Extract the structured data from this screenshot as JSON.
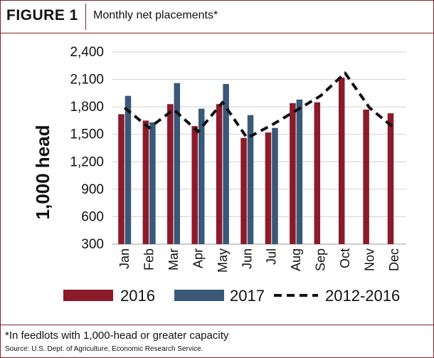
{
  "figure": {
    "label": "FIGURE 1",
    "title": "Monthly net placements*",
    "footnote": "*In feedlots with 1,000-head or greater capacity",
    "source": "Source: U.S. Dept. of Agriculture, Economic Research Service."
  },
  "colors": {
    "s2016": "#8b1a2b",
    "s2017": "#3a5878",
    "avg": "#111111",
    "grid": "#d0d0d0",
    "frame": "#8a1f2b"
  },
  "chart_data": {
    "type": "bar",
    "categories": [
      "Jan",
      "Feb",
      "Mar",
      "Apr",
      "May",
      "Jun",
      "Jul",
      "Aug",
      "Sep",
      "Oct",
      "Nov",
      "Dec"
    ],
    "series": [
      {
        "name": "2016",
        "type": "bar",
        "values": [
          1720,
          1650,
          1830,
          1590,
          1830,
          1460,
          1520,
          1840,
          1850,
          2120,
          1770,
          1730
        ]
      },
      {
        "name": "2017",
        "type": "bar",
        "values": [
          1920,
          1630,
          2060,
          1780,
          2050,
          1710,
          1570,
          1880,
          null,
          null,
          null,
          null
        ]
      },
      {
        "name": "2012-2016",
        "type": "line",
        "style": "dashed",
        "values": [
          1790,
          1570,
          1770,
          1530,
          1850,
          1460,
          1600,
          1760,
          1920,
          2170,
          1790,
          1570
        ]
      }
    ],
    "ylabel": "1,000 head",
    "ylim": [
      300,
      2400
    ],
    "yticks": [
      "2,400",
      "2,100",
      "1,800",
      "1,500",
      "1,200",
      "900",
      "600",
      "300"
    ],
    "grid": true,
    "legend_position": "bottom"
  }
}
